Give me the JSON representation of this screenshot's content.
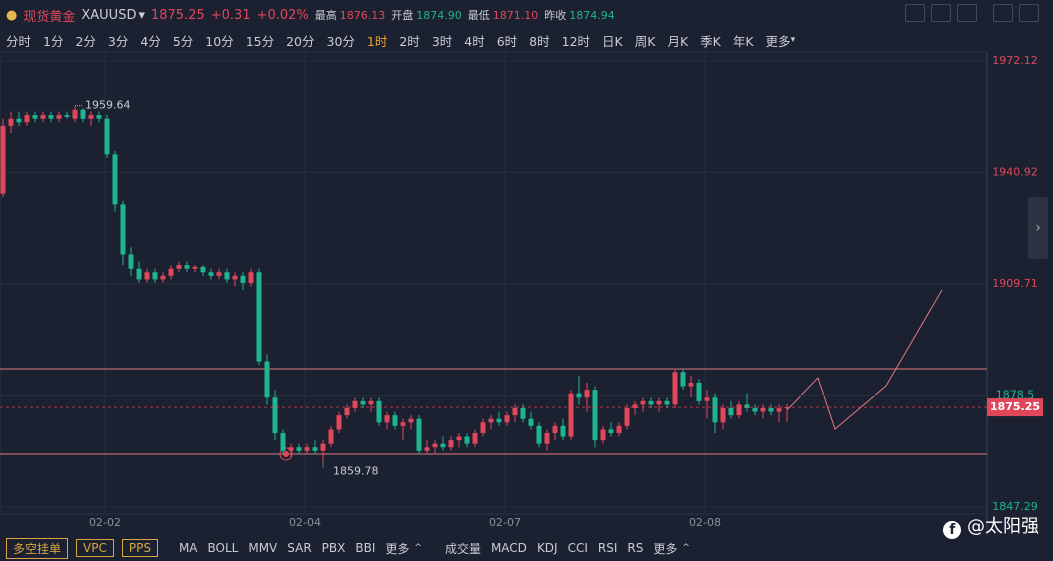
{
  "header": {
    "name": "现货黄金",
    "code": "XAUUSD",
    "price": "1875.25",
    "change": "+0.31",
    "change_pct": "+0.02%",
    "stats": [
      {
        "label": "最高",
        "value": "1876.13"
      },
      {
        "label": "开盘",
        "value": "1874.90"
      },
      {
        "label": "最低",
        "value": "1871.10"
      },
      {
        "label": "昨收",
        "value": "1874.94"
      }
    ]
  },
  "timeframes": [
    "分时",
    "1分",
    "2分",
    "3分",
    "4分",
    "5分",
    "10分",
    "15分",
    "20分",
    "30分",
    "1时",
    "2时",
    "3时",
    "4时",
    "6时",
    "8时",
    "12时",
    "日K",
    "周K",
    "月K",
    "季K",
    "年K",
    "更多"
  ],
  "active_timeframe": 10,
  "chart_data": {
    "type": "candlestick",
    "up_color": "#e0475a",
    "down_color": "#1fb58f",
    "ylim": [
      1845.31,
      1974.67
    ],
    "yticks": [
      1847.29,
      1878.5,
      1909.71,
      1940.92,
      1972.12
    ],
    "dates": [
      "02-02",
      "02-04",
      "02-07",
      "02-08"
    ],
    "last_price": 1875.25,
    "high_label": 1959.64,
    "low_label": 1859.78,
    "candles": [
      [
        1935,
        1956,
        1934,
        1954
      ],
      [
        1954,
        1958,
        1952,
        1956
      ],
      [
        1956,
        1958,
        1954,
        1955
      ],
      [
        1955,
        1958,
        1954,
        1957
      ],
      [
        1957,
        1958,
        1955,
        1956
      ],
      [
        1956,
        1958,
        1955,
        1957
      ],
      [
        1957,
        1958,
        1955,
        1956
      ],
      [
        1956,
        1958,
        1955,
        1957
      ],
      [
        1957,
        1958,
        1956,
        1956.5
      ],
      [
        1956,
        1959.64,
        1955,
        1958.5
      ],
      [
        1958.5,
        1959,
        1955,
        1956
      ],
      [
        1956,
        1958,
        1954,
        1957
      ],
      [
        1957,
        1958,
        1955,
        1956
      ],
      [
        1956,
        1957,
        1945,
        1946
      ],
      [
        1946,
        1947,
        1930,
        1932
      ],
      [
        1932,
        1933,
        1915,
        1918
      ],
      [
        1918,
        1920,
        1912,
        1914
      ],
      [
        1914,
        1916,
        1910,
        1911
      ],
      [
        1911,
        1914,
        1910,
        1913
      ],
      [
        1913,
        1914,
        1910,
        1911
      ],
      [
        1911,
        1913,
        1910,
        1912
      ],
      [
        1912,
        1915,
        1911,
        1914
      ],
      [
        1914,
        1916,
        1913,
        1915
      ],
      [
        1915,
        1916,
        1913,
        1914
      ],
      [
        1914,
        1915,
        1913,
        1914.5
      ],
      [
        1914.5,
        1915,
        1912,
        1913
      ],
      [
        1913,
        1914,
        1911,
        1912
      ],
      [
        1912,
        1914,
        1911,
        1913
      ],
      [
        1913,
        1914,
        1910,
        1911
      ],
      [
        1911,
        1913,
        1909,
        1912
      ],
      [
        1912,
        1913,
        1908,
        1910
      ],
      [
        1910,
        1914,
        1909,
        1913
      ],
      [
        1913,
        1914,
        1887,
        1888
      ],
      [
        1888,
        1890,
        1876,
        1878
      ],
      [
        1878,
        1880,
        1866,
        1868
      ],
      [
        1868,
        1869,
        1862,
        1863
      ],
      [
        1863,
        1865,
        1861,
        1864
      ],
      [
        1864,
        1865,
        1862,
        1863
      ],
      [
        1863,
        1865,
        1862,
        1864
      ],
      [
        1864,
        1866,
        1862,
        1863
      ],
      [
        1863,
        1866,
        1859.78,
        1865
      ],
      [
        1865,
        1870,
        1864,
        1869
      ],
      [
        1869,
        1874,
        1868,
        1873
      ],
      [
        1873,
        1876,
        1872,
        1875
      ],
      [
        1875,
        1878,
        1874,
        1877
      ],
      [
        1877,
        1878,
        1875,
        1876
      ],
      [
        1876,
        1878,
        1874,
        1877
      ],
      [
        1877,
        1878,
        1870,
        1871
      ],
      [
        1871,
        1874,
        1869,
        1873
      ],
      [
        1873,
        1874,
        1869,
        1870
      ],
      [
        1870,
        1872,
        1866,
        1871
      ],
      [
        1871,
        1873,
        1869,
        1872
      ],
      [
        1872,
        1873,
        1862,
        1863
      ],
      [
        1863,
        1866,
        1862,
        1864
      ],
      [
        1864,
        1866,
        1862,
        1865
      ],
      [
        1865,
        1867,
        1863,
        1864
      ],
      [
        1864,
        1867,
        1863,
        1866
      ],
      [
        1866,
        1868,
        1864,
        1867
      ],
      [
        1867,
        1868,
        1864,
        1865
      ],
      [
        1865,
        1869,
        1864,
        1868
      ],
      [
        1868,
        1872,
        1867,
        1871
      ],
      [
        1871,
        1873,
        1869,
        1872
      ],
      [
        1872,
        1874,
        1870,
        1871
      ],
      [
        1871,
        1874,
        1870,
        1873
      ],
      [
        1873,
        1876,
        1871,
        1875
      ],
      [
        1875,
        1876,
        1871,
        1872
      ],
      [
        1872,
        1874,
        1869,
        1870
      ],
      [
        1870,
        1871,
        1864,
        1865
      ],
      [
        1865,
        1869,
        1863,
        1868
      ],
      [
        1868,
        1871,
        1866,
        1870
      ],
      [
        1870,
        1872,
        1866,
        1867
      ],
      [
        1867,
        1880,
        1866,
        1879
      ],
      [
        1879,
        1884,
        1876,
        1878
      ],
      [
        1878,
        1882,
        1874,
        1880
      ],
      [
        1880,
        1881,
        1864,
        1866
      ],
      [
        1866,
        1870,
        1865,
        1869
      ],
      [
        1869,
        1871,
        1867,
        1868
      ],
      [
        1868,
        1871,
        1867,
        1870
      ],
      [
        1870,
        1876,
        1869,
        1875
      ],
      [
        1875,
        1877,
        1873,
        1876
      ],
      [
        1876,
        1878,
        1874,
        1877
      ],
      [
        1877,
        1878,
        1875,
        1876
      ],
      [
        1876,
        1878,
        1874,
        1877
      ],
      [
        1877,
        1878,
        1875,
        1876
      ],
      [
        1876,
        1886,
        1875,
        1885
      ],
      [
        1885,
        1886,
        1880,
        1881
      ],
      [
        1881,
        1884,
        1878,
        1882
      ],
      [
        1882,
        1883,
        1876,
        1877
      ],
      [
        1877,
        1880,
        1872,
        1878
      ],
      [
        1878,
        1879,
        1868,
        1871
      ],
      [
        1871,
        1876,
        1869,
        1875
      ],
      [
        1875,
        1877,
        1872,
        1873
      ],
      [
        1873,
        1877,
        1872,
        1876
      ],
      [
        1876,
        1879,
        1874,
        1875
      ],
      [
        1875,
        1876,
        1873,
        1874
      ],
      [
        1874,
        1876,
        1872,
        1875
      ],
      [
        1875,
        1876,
        1873,
        1874
      ],
      [
        1874,
        1876,
        1871,
        1874.94
      ],
      [
        1874.94,
        1876.13,
        1871.1,
        1875.25
      ]
    ]
  },
  "bottom": {
    "buttons": [
      "多空挂单",
      "VPC",
      "PPS"
    ],
    "main_indicators": [
      "MA",
      "BOLL",
      "MMV",
      "SAR",
      "PBX",
      "BBI",
      "更多"
    ],
    "sub_indicators": [
      "成交量",
      "MACD",
      "KDJ",
      "CCI",
      "RSI",
      "RS",
      "更多"
    ]
  },
  "watermark": "@太阳强"
}
